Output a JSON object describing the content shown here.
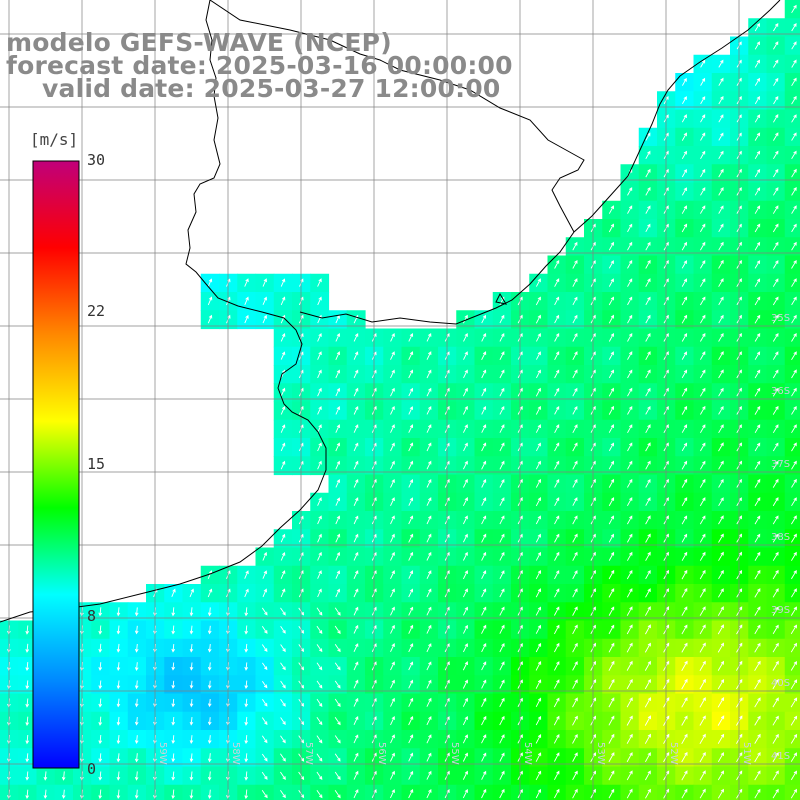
{
  "title": {
    "line1": "modelo GEFS-WAVE (NCEP)",
    "line2": "forecast date: 2025-03-16 00:00:00",
    "line3": "valid date: 2025-03-27 12:00:00"
  },
  "colorbar": {
    "unit": "[m/s]",
    "ticks": [
      {
        "label": "30",
        "value": 30
      },
      {
        "label": "22",
        "value": 22
      },
      {
        "label": "15",
        "value": 15
      },
      {
        "label": "8",
        "value": 8
      },
      {
        "label": "0",
        "value": 0
      }
    ],
    "colors": [
      "#0000ff",
      "#0088ff",
      "#00ffff",
      "#00ff00",
      "#ffff00",
      "#ff8800",
      "#ff0000",
      "#c0007a"
    ]
  },
  "lat_labels": [
    "35S",
    "36S",
    "37S",
    "38S",
    "39S",
    "40S",
    "41S"
  ],
  "lon_labels": [
    "59W",
    "58W",
    "57W",
    "56W",
    "55W",
    "54W",
    "53W",
    "52W",
    "51W"
  ],
  "colors": {
    "land": "#ffffff",
    "coast": "#000000",
    "grid": "#808080",
    "arrows": "#ffffff"
  }
}
